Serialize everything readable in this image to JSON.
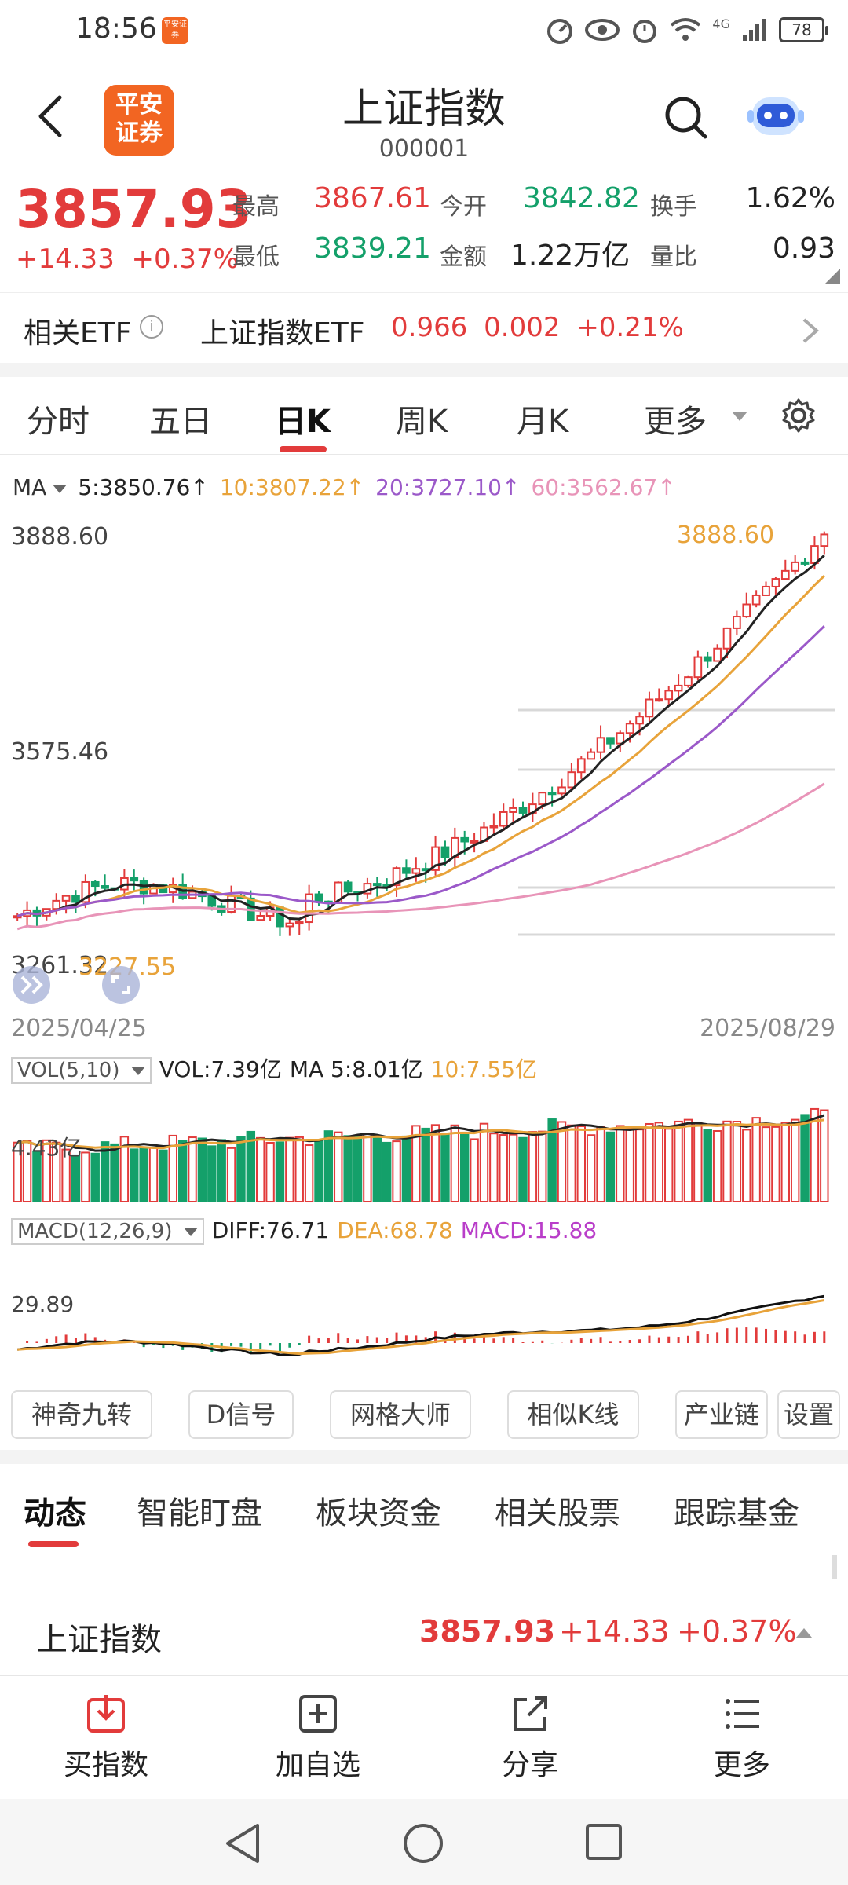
{
  "status_bar": {
    "time": "18:56",
    "app_badge": "平安证券",
    "network": "4G",
    "battery": "78"
  },
  "header": {
    "title": "上证指数",
    "code": "000001",
    "logo_text": "平安证券"
  },
  "quote": {
    "price": "3857.93",
    "change": "+14.33",
    "change_pct": "+0.37%",
    "high_label": "最高",
    "high": "3867.61",
    "low_label": "最低",
    "low": "3839.21",
    "open_label": "今开",
    "open": "3842.82",
    "amount_label": "金额",
    "amount": "1.22万亿",
    "turnover_label": "换手",
    "turnover": "1.62%",
    "vol_ratio_label": "量比",
    "vol_ratio": "0.93"
  },
  "etf": {
    "label": "相关ETF",
    "info": "i",
    "name": "上证指数ETF",
    "price": "0.966",
    "change": "0.002",
    "change_pct": "+0.21%"
  },
  "kline_tabs": [
    {
      "label": "分时"
    },
    {
      "label": "五日"
    },
    {
      "label": "日K"
    },
    {
      "label": "周K"
    },
    {
      "label": "月K"
    },
    {
      "label": "更多"
    }
  ],
  "ma_legend": {
    "label": "MA",
    "ma5": "5:3850.76↑",
    "ma10": "10:3807.22↑",
    "ma20": "20:3727.10↑",
    "ma60": "60:3562.67↑",
    "colors": {
      "ma5": "#222222",
      "ma10": "#e8a33a",
      "ma20": "#9b59c9",
      "ma60": "#e894b8"
    }
  },
  "kline": {
    "y_top": "3888.60",
    "y_mid": "3575.46",
    "y_bottom": "3261.32",
    "max_marker": "3888.60",
    "min_marker": "3227.55",
    "start_date": "2025/04/25",
    "end_date": "2025/08/29"
  },
  "volume": {
    "selector": "VOL(5,10)",
    "vol": "VOL:7.39亿",
    "ma5": "MA 5:8.01亿",
    "ma10": "10:7.55亿",
    "axis_label": "4.43亿"
  },
  "macd": {
    "selector": "MACD(12,26,9)",
    "diff": "DIFF:76.71",
    "dea": "DEA:68.78",
    "macd": "MACD:15.88",
    "axis_label": "29.89"
  },
  "tools": [
    {
      "label": "神奇九转"
    },
    {
      "label": "D信号"
    },
    {
      "label": "网格大师"
    },
    {
      "label": "相似K线"
    },
    {
      "label": "产业链"
    },
    {
      "label": "设置"
    }
  ],
  "bottom_tabs": [
    {
      "label": "动态"
    },
    {
      "label": "智能盯盘"
    },
    {
      "label": "板块资金"
    },
    {
      "label": "相关股票"
    },
    {
      "label": "跟踪基金"
    }
  ],
  "index_row": {
    "name": "上证指数",
    "price": "3857.93",
    "change": "+14.33",
    "change_pct": "+0.37%"
  },
  "actions": [
    {
      "label": "买指数"
    },
    {
      "label": "加自选"
    },
    {
      "label": "分享"
    },
    {
      "label": "更多"
    }
  ],
  "colors": {
    "up": "#e23b3b",
    "down": "#14a06a",
    "accent": "#f26522"
  }
}
